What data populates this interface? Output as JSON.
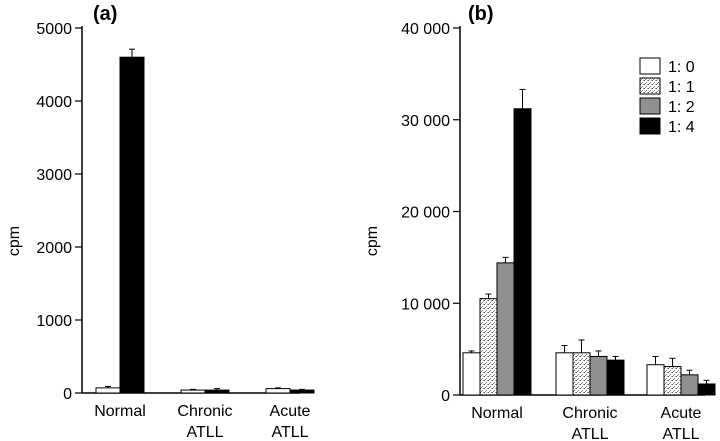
{
  "chart_data": [
    {
      "panel_label": "(a)",
      "type": "bar",
      "ylabel": "cpm",
      "ylim": [
        0,
        5000
      ],
      "yticks": [
        0,
        1000,
        2000,
        3000,
        4000,
        5000
      ],
      "ytick_labels": [
        "0",
        "1000",
        "2000",
        "3000",
        "4000",
        "5000"
      ],
      "categories": [
        {
          "lines": [
            "Normal"
          ]
        },
        {
          "lines": [
            "Chronic",
            "ATLL"
          ]
        },
        {
          "lines": [
            "Acute",
            "ATLL"
          ]
        }
      ],
      "series": [
        {
          "values": [
            70,
            40,
            60
          ],
          "errors": [
            20,
            10,
            10
          ]
        },
        {
          "values": [
            4600,
            40,
            40
          ],
          "errors": [
            110,
            20,
            10
          ]
        }
      ]
    },
    {
      "panel_label": "(b)",
      "type": "bar",
      "ylabel": "cpm",
      "ylim": [
        0,
        40000
      ],
      "yticks": [
        0,
        10000,
        20000,
        30000,
        40000
      ],
      "ytick_labels": [
        "0",
        "10 000",
        "20 000",
        "30 000",
        "40 000"
      ],
      "legend_position": "top-right",
      "categories": [
        {
          "lines": [
            "Normal"
          ]
        },
        {
          "lines": [
            "Chronic",
            "ATLL"
          ]
        },
        {
          "lines": [
            "Acute",
            "ATLL"
          ]
        }
      ],
      "series": [
        {
          "name": "1: 0",
          "values": [
            4600,
            4600,
            3300
          ],
          "errors": [
            200,
            800,
            900
          ]
        },
        {
          "name": "1: 1",
          "values": [
            10500,
            4600,
            3100
          ],
          "errors": [
            500,
            1400,
            900
          ]
        },
        {
          "name": "1: 2",
          "values": [
            14400,
            4200,
            2200
          ],
          "errors": [
            600,
            600,
            500
          ]
        },
        {
          "name": "1: 4",
          "values": [
            31200,
            3800,
            1200
          ],
          "errors": [
            2100,
            400,
            400
          ]
        }
      ]
    }
  ]
}
